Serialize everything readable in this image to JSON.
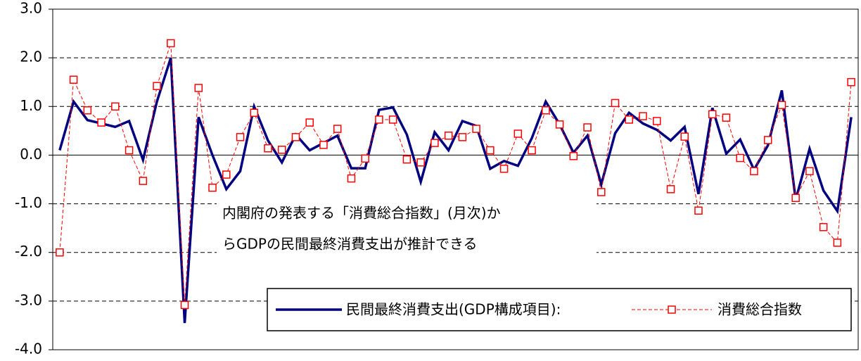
{
  "chart_data": {
    "type": "line",
    "categories": [
      null,
      null,
      null,
      null,
      null,
      null,
      null,
      null,
      null,
      null,
      null,
      null,
      null,
      null,
      null,
      null,
      null,
      null,
      null,
      null,
      null,
      null,
      null,
      null,
      null,
      null,
      null,
      null,
      null,
      null,
      null,
      null,
      null,
      null,
      null,
      null,
      null,
      null,
      null,
      null,
      null,
      null,
      null,
      null,
      null,
      null,
      null,
      null,
      null,
      null,
      null,
      null,
      null,
      null,
      null,
      null,
      null,
      null
    ],
    "series": [
      {
        "name": "民間最終消費支出(GDP構成項目):",
        "color": "#000080",
        "style": "solid",
        "values": [
          0.1,
          1.1,
          0.72,
          0.65,
          0.58,
          0.7,
          -0.1,
          1.1,
          2.0,
          -3.45,
          0.78,
          0.0,
          -0.7,
          -0.33,
          1.0,
          0.3,
          -0.15,
          0.42,
          0.1,
          0.25,
          0.4,
          -0.27,
          -0.27,
          0.93,
          0.98,
          0.42,
          -0.55,
          0.47,
          0.1,
          0.7,
          0.6,
          -0.28,
          -0.12,
          -0.22,
          0.35,
          1.1,
          0.63,
          0.05,
          0.4,
          -0.6,
          0.45,
          0.87,
          0.65,
          0.52,
          0.3,
          0.58,
          -0.8,
          0.97,
          0.03,
          0.32,
          -0.3,
          0.2,
          1.33,
          -0.92,
          0.13,
          -0.73,
          -1.15,
          0.78
        ]
      },
      {
        "name": "消費総合指数",
        "color": "#ff0000",
        "style": "dashed-square",
        "values": [
          -2.0,
          1.55,
          0.92,
          0.67,
          1.0,
          0.1,
          -0.53,
          1.42,
          2.3,
          -3.08,
          1.38,
          -0.67,
          -0.4,
          0.37,
          0.87,
          0.14,
          0.11,
          0.37,
          0.67,
          0.21,
          0.54,
          -0.48,
          -0.07,
          0.73,
          0.73,
          -0.09,
          -0.15,
          0.25,
          0.4,
          0.37,
          0.54,
          0.1,
          -0.28,
          0.44,
          0.1,
          0.92,
          0.63,
          -0.02,
          0.57,
          -0.76,
          1.07,
          0.73,
          0.8,
          0.7,
          -0.7,
          0.38,
          -1.14,
          0.84,
          0.77,
          -0.06,
          -0.33,
          0.31,
          1.03,
          -0.88,
          -0.33,
          -1.48,
          -1.8,
          1.5
        ]
      }
    ],
    "ylim": [
      -4,
      3
    ],
    "yticks": [
      {
        "value": -4,
        "label": "-4.0"
      },
      {
        "value": -3,
        "label": "-3.0"
      },
      {
        "value": -2,
        "label": "-2.0"
      },
      {
        "value": -1,
        "label": "-1.0"
      },
      {
        "value": 0,
        "label": "0.0"
      },
      {
        "value": 1,
        "label": "1.0"
      },
      {
        "value": 2,
        "label": "2.0"
      },
      {
        "value": 3,
        "label": "3.0"
      }
    ],
    "grid": true,
    "annotation": [
      "内閣府の発表する「消費総合指数」(月次)か",
      "らGDPの民間最終消費支出が推計できる"
    ],
    "legend": "bottom-right"
  }
}
